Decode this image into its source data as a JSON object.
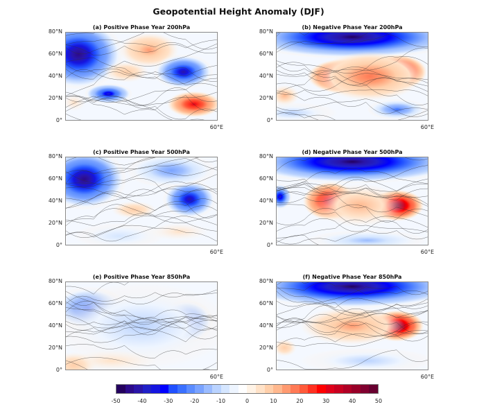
{
  "title": "Geopotential Height Anomaly (DJF)",
  "panels": [
    {
      "title": "(a) Positive Phase Year 200hPa"
    },
    {
      "title": "(b) Negative Phase Year 200hPa"
    },
    {
      "title": "(c) Positive Phase Year 500hPa"
    },
    {
      "title": "(d) Negative Phase Year 500hPa"
    },
    {
      "title": "(e) Positive Phase Year 850hPa"
    },
    {
      "title": "(f) Negative Phase Year 850hPa"
    }
  ],
  "y_ticks": [
    "80°N",
    "60°N",
    "40°N",
    "20°N",
    "0°"
  ],
  "x_tick": "60°E",
  "colorbar": {
    "ticks": [
      "-50",
      "-40",
      "-30",
      "-20",
      "-10",
      "0",
      "10",
      "20",
      "30",
      "40",
      "50"
    ],
    "range": [
      -50,
      50
    ],
    "colors": [
      "#24005e",
      "#2c0a8a",
      "#2a15a8",
      "#2020c8",
      "#1515e0",
      "#0000ff",
      "#2050ff",
      "#3a70ff",
      "#5b8cff",
      "#7aa3ff",
      "#9bbcff",
      "#bad3ff",
      "#d5e6ff",
      "#eef5ff",
      "#ffffff",
      "#fff3e6",
      "#ffe2c8",
      "#ffcfaa",
      "#ffb88e",
      "#ff9a70",
      "#ff7a55",
      "#ff5a3a",
      "#ff3020",
      "#ff0000",
      "#e0001a",
      "#c80020",
      "#b00025",
      "#980028",
      "#800030",
      "#680030"
    ]
  }
}
